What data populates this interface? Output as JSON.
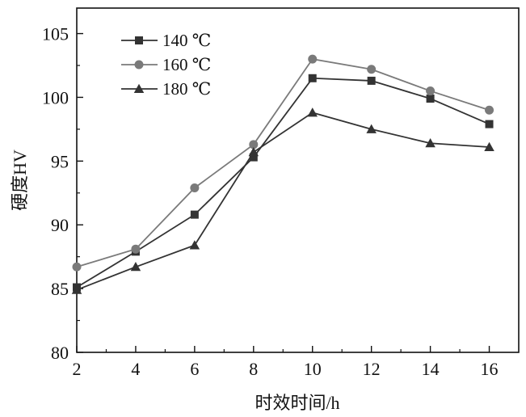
{
  "chart_data": {
    "type": "line",
    "title": "",
    "xlabel": "时效时间/h",
    "ylabel": "硬度HV",
    "x": [
      2,
      4,
      6,
      8,
      10,
      12,
      14,
      16
    ],
    "xlim": [
      2,
      17
    ],
    "ylim": [
      80,
      107
    ],
    "xticks": [
      "2",
      "4",
      "6",
      "8",
      "10",
      "12",
      "14",
      "16"
    ],
    "yticks": [
      "80",
      "85",
      "90",
      "95",
      "100",
      "105"
    ],
    "grid": false,
    "legend_position": "top-left",
    "series": [
      {
        "name": "140 ℃",
        "marker": "square",
        "color": "#333333",
        "values": [
          85.1,
          87.9,
          90.8,
          95.3,
          101.5,
          101.3,
          99.9,
          97.9
        ]
      },
      {
        "name": "160 ℃",
        "marker": "circle",
        "color": "#7a7a7a",
        "values": [
          86.7,
          88.1,
          92.9,
          96.3,
          103.0,
          102.2,
          100.5,
          99.0
        ]
      },
      {
        "name": "180 ℃",
        "marker": "triangle",
        "color": "#333333",
        "values": [
          84.9,
          86.7,
          88.4,
          95.7,
          98.8,
          97.5,
          96.4,
          96.1
        ]
      }
    ]
  }
}
